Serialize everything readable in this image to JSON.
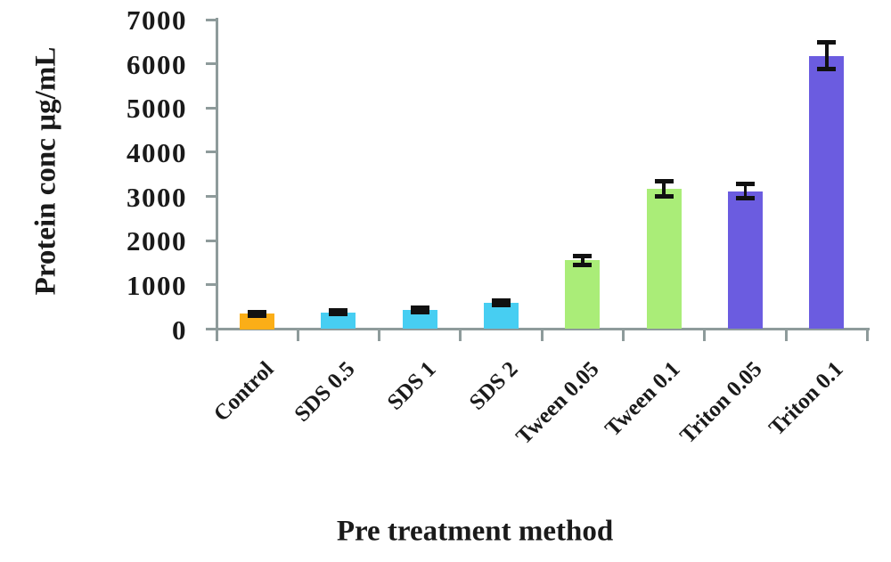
{
  "chart_data": {
    "type": "bar",
    "title": "",
    "xlabel": "Pre treatment method",
    "ylabel": "Protein conc µg/mL",
    "categories": [
      "Control",
      "SDS 0.5",
      "SDS 1",
      "SDS 2",
      "Tween 0.05",
      "Tween 0.1",
      "Triton 0.05",
      "Triton 0.1"
    ],
    "values": [
      350,
      380,
      440,
      600,
      1560,
      3180,
      3120,
      6180
    ],
    "errors": [
      40,
      40,
      50,
      50,
      100,
      170,
      160,
      300
    ],
    "bar_colors": [
      "#FBAE17",
      "#47CEF2",
      "#47CEF2",
      "#47CEF2",
      "#AAED78",
      "#AAED78",
      "#6B5CE0",
      "#6B5CE0"
    ],
    "ylim": [
      0,
      7000
    ],
    "yticks": [
      0,
      1000,
      2000,
      3000,
      4000,
      5000,
      6000,
      7000
    ],
    "grid": false,
    "legend": null,
    "axis_color": "#8e9b9b",
    "error_bar_color": "#111111",
    "text_color": "#1a1a1a",
    "background_color": "#ffffff"
  }
}
